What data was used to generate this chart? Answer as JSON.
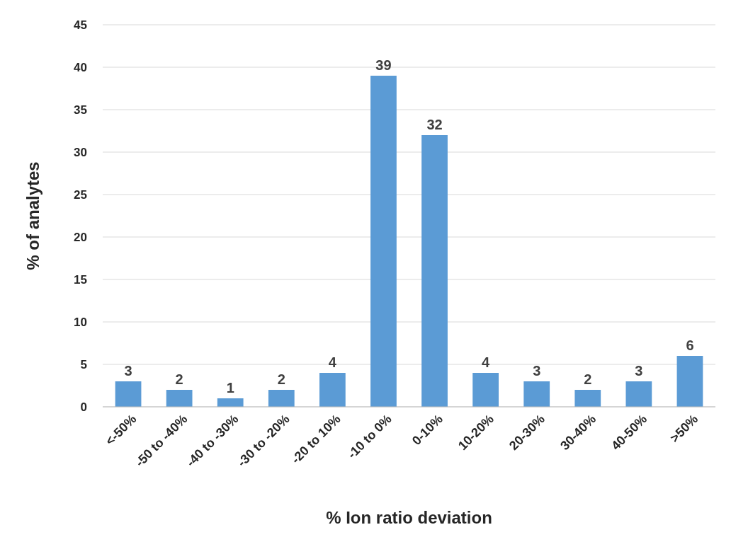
{
  "chart_data": {
    "type": "bar",
    "xlabel": "% Ion ratio deviation",
    "ylabel": "% of analytes",
    "categories": [
      "<-50%",
      "-50 to -40%",
      "-40 to -30%",
      "-30 to -20%",
      "-20 to 10%",
      "-10 to 0%",
      "0-10%",
      "10-20%",
      "20-30%",
      "30-40%",
      "40-50%",
      ">50%"
    ],
    "values": [
      3,
      2,
      1,
      2,
      4,
      39,
      32,
      4,
      3,
      2,
      3,
      6
    ],
    "color": "#5b9bd5",
    "ylim": [
      0,
      45
    ],
    "yticks": [
      0,
      5,
      10,
      15,
      20,
      25,
      30,
      35,
      40,
      45
    ],
    "grid": "y",
    "data_labels": true
  }
}
